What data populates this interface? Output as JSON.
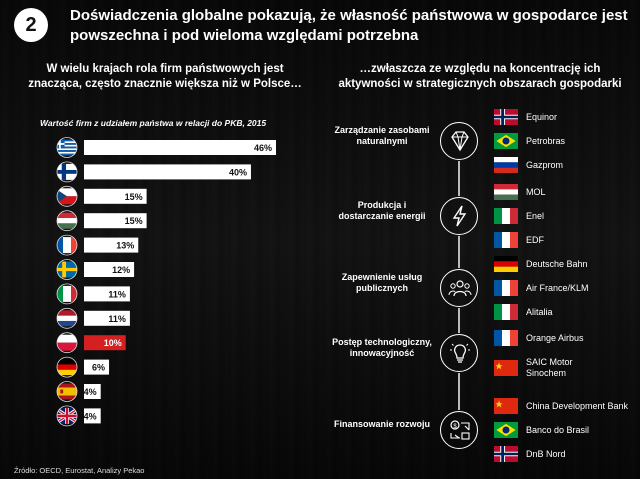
{
  "header": {
    "badge": "2",
    "title": "Doświadczenia globalne pokazują, że własność państwowa w gospodarce jest powszechna i pod wieloma względami potrzebna"
  },
  "left": {
    "heading": "W wielu krajach rola firm państwowych jest znacząca, często znacznie większa niż w Polsce…"
  },
  "right": {
    "heading": "…zwłaszcza ze względu na koncentrację ich aktywności w strategicznych obszarach gospodarki",
    "rows": [
      {
        "label": "Zarządzanie zasobami naturalnymi",
        "icon": "diamond-icon",
        "companies": [
          {
            "name": "Equinor",
            "flag": "norway"
          },
          {
            "name": "Petrobras",
            "flag": "brazil"
          },
          {
            "name": "Gazprom",
            "flag": "russia"
          }
        ]
      },
      {
        "label": "Produkcja i dostarczanie energii",
        "icon": "lightning-icon",
        "companies": [
          {
            "name": "MOL",
            "flag": "hungary"
          },
          {
            "name": "Enel",
            "flag": "italy"
          },
          {
            "name": "EDF",
            "flag": "france"
          }
        ]
      },
      {
        "label": "Zapewnienie usług publicznych",
        "icon": "people-icon",
        "companies": [
          {
            "name": "Deutsche Bahn",
            "flag": "germany"
          },
          {
            "name": "Air France/KLM",
            "flag": "france"
          },
          {
            "name": "Alitalia",
            "flag": "italy"
          }
        ]
      },
      {
        "label": "Postęp technologiczny, innowacyjność",
        "icon": "lightbulb-icon",
        "companies": [
          {
            "name": "Orange Airbus",
            "flag": "france"
          },
          {
            "name": "SAIC Motor Sinochem",
            "flag": "china"
          }
        ]
      },
      {
        "label": "Finansowanie rozwoju",
        "icon": "finance-icon",
        "companies": [
          {
            "name": "China Development Bank",
            "flag": "china"
          },
          {
            "name": "Banco do Brasil",
            "flag": "brazil"
          },
          {
            "name": "DnB Nord",
            "flag": "norway"
          }
        ]
      }
    ]
  },
  "chart_data": {
    "type": "bar",
    "orientation": "horizontal",
    "title": "Wartość firm z udziałem państwa w relacji do PKB, 2015",
    "categories": [
      "greece",
      "finland",
      "czech-republic",
      "hungary",
      "france",
      "sweden",
      "italy",
      "netherlands",
      "poland",
      "germany",
      "spain",
      "united-kingdom"
    ],
    "values": [
      46,
      40,
      15,
      15,
      13,
      12,
      11,
      11,
      10,
      6,
      4,
      4
    ],
    "labels": [
      "46%",
      "40%",
      "15%",
      "15%",
      "13%",
      "12%",
      "11%",
      "11%",
      "10%",
      "6%",
      "4%",
      "4%"
    ],
    "highlight_category": "poland",
    "xlim": [
      0,
      46
    ],
    "colors": {
      "bar": "#ffffff",
      "highlight": "#d42020"
    }
  },
  "footer": {
    "source": "Źródło: OECD, Eurostat, Analizy Pekao"
  }
}
